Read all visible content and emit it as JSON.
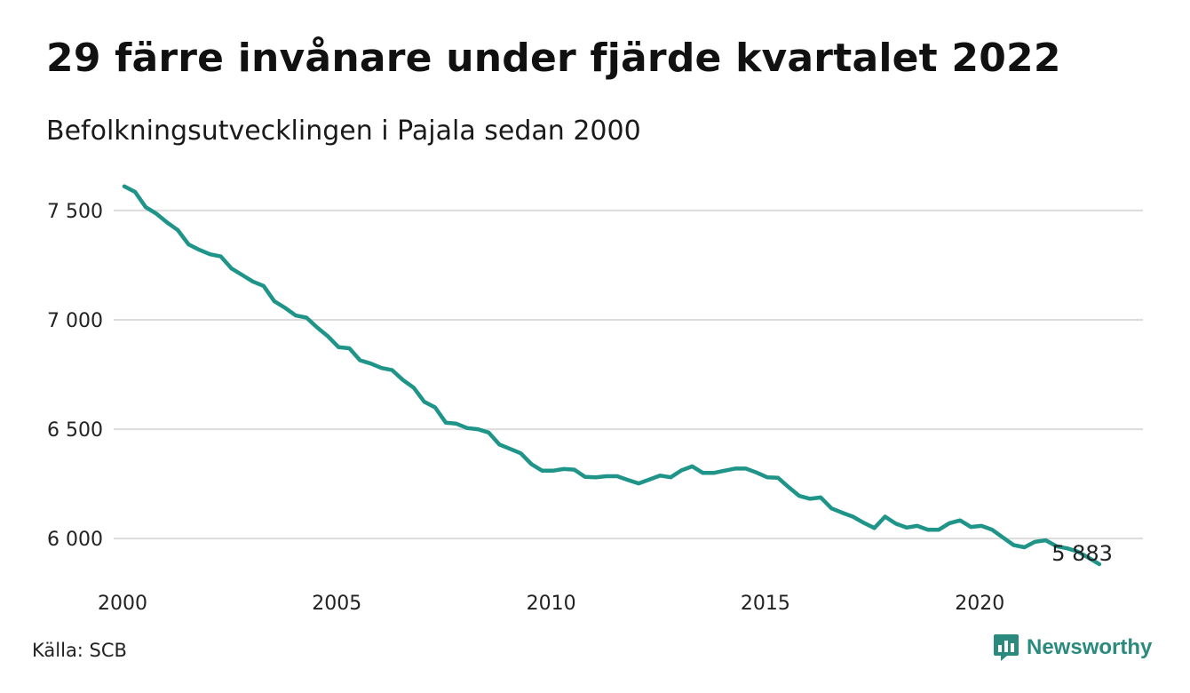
{
  "title": "29 färre invånare under fjärde kvartalet 2022",
  "subtitle": "Befolkningsutvecklingen i Pajala sedan 2000",
  "source": "Källa: SCB",
  "brand": {
    "name": "Newsworthy",
    "icon": "bar-chart-speech-bubble-icon",
    "color": "#2a8a7e"
  },
  "chart_data": {
    "type": "line",
    "title": "29 färre invånare under fjärde kvartalet 2022",
    "subtitle": "Befolkningsutvecklingen i Pajala sedan 2000",
    "xlabel": "",
    "ylabel": "",
    "xlim": [
      2000.0,
      2023.0
    ],
    "ylim": [
      5830,
      7650
    ],
    "x_ticks": [
      2000,
      2005,
      2010,
      2015,
      2020
    ],
    "x_tick_labels": [
      "2000",
      "2005",
      "2010",
      "2015",
      "2020"
    ],
    "y_ticks": [
      6000,
      6500,
      7000,
      7500
    ],
    "y_tick_labels": [
      "6 000",
      "6 500",
      "7 000",
      "7 500"
    ],
    "grid": "horizontal",
    "line_color": "#1f9488",
    "end_label": "5 883",
    "series": [
      {
        "x": [
          2000.0,
          2000.25,
          2000.5,
          2000.75,
          2001.0,
          2001.25,
          2001.5,
          2001.75,
          2002.0,
          2002.25,
          2002.5,
          2002.75,
          2003.0,
          2003.25,
          2003.5,
          2003.75,
          2004.0,
          2004.25,
          2004.5,
          2004.75,
          2005.0,
          2005.25,
          2005.5,
          2005.75,
          2006.0,
          2006.25,
          2006.5,
          2006.75,
          2007.0,
          2007.25,
          2007.5,
          2007.75,
          2008.0,
          2008.25,
          2008.5,
          2008.75,
          2009.0,
          2009.25,
          2009.5,
          2009.75,
          2010.0,
          2010.25,
          2010.5,
          2010.75,
          2011.0,
          2011.25,
          2011.5,
          2011.75,
          2012.0,
          2012.25,
          2012.5,
          2012.75,
          2013.0,
          2013.25,
          2013.5,
          2013.75,
          2014.0,
          2014.25,
          2014.5,
          2014.75,
          2015.0,
          2015.25,
          2015.5,
          2015.75,
          2016.0,
          2016.25,
          2016.5,
          2016.75,
          2017.0,
          2017.25,
          2017.5,
          2017.75,
          2018.0,
          2018.25,
          2018.5,
          2018.75,
          2019.0,
          2019.25,
          2019.5,
          2019.75,
          2020.0,
          2020.25,
          2020.5,
          2020.75,
          2021.0,
          2021.25,
          2021.5,
          2021.75,
          2022.0,
          2022.25,
          2022.5,
          2022.75
        ],
        "values": [
          7610,
          7585,
          7515,
          7485,
          7445,
          7410,
          7345,
          7320,
          7300,
          7290,
          7235,
          7205,
          7175,
          7155,
          7085,
          7055,
          7020,
          7010,
          6965,
          6925,
          6875,
          6870,
          6815,
          6800,
          6780,
          6770,
          6725,
          6690,
          6625,
          6600,
          6530,
          6525,
          6505,
          6500,
          6485,
          6430,
          6410,
          6390,
          6340,
          6310,
          6310,
          6318,
          6315,
          6282,
          6280,
          6285,
          6285,
          6268,
          6252,
          6270,
          6288,
          6280,
          6312,
          6330,
          6300,
          6300,
          6310,
          6320,
          6320,
          6302,
          6280,
          6278,
          6235,
          6195,
          6182,
          6188,
          6138,
          6118,
          6100,
          6072,
          6048,
          6100,
          6068,
          6050,
          6058,
          6040,
          6040,
          6070,
          6083,
          6053,
          6058,
          6040,
          6005,
          5970,
          5960,
          5985,
          5992,
          5965,
          5955,
          5940,
          5912,
          5883
        ]
      }
    ]
  }
}
